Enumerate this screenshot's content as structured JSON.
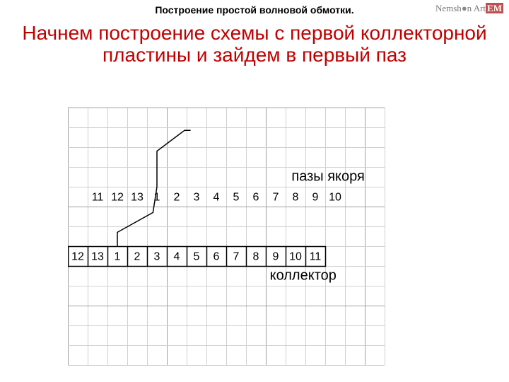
{
  "header": "Построение простой волновой обмотки.",
  "watermark": {
    "part1": "Nemsh",
    "dot": "●",
    "part2": "n Art",
    "suffix": "EM"
  },
  "subtitle": "Начнем построение схемы с первой коллекторной пластины и зайдем в первый паз",
  "diagram": {
    "cell_size": 28,
    "cols": 16,
    "rows": 13,
    "grid_light_color": "#d0d0d0",
    "grid_bold_color": "#a0a0a0",
    "slot_label": "пазы якоря",
    "slot_label_row": 3,
    "slot_label_col_start": 11.3,
    "slots_row": 4,
    "slots": [
      "11",
      "12",
      "13",
      "1",
      "2",
      "3",
      "4",
      "5",
      "6",
      "7",
      "8",
      "9",
      "10"
    ],
    "slots_col_start": 1,
    "collector_label": "коллектор",
    "collector_label_row": 8,
    "collector_label_col_start": 10.2,
    "collector_row": 7,
    "collector": [
      "12",
      "13",
      "1",
      "2",
      "3",
      "4",
      "5",
      "6",
      "7",
      "8",
      "9",
      "10",
      "11"
    ],
    "collector_col_start": 0,
    "winding_path": {
      "points": [
        {
          "col": 2.5,
          "row": 7
        },
        {
          "col": 2.5,
          "row": 6.3
        },
        {
          "col": 4.3,
          "row": 5.3
        },
        {
          "col": 4.5,
          "row": 4
        },
        {
          "col": 4.5,
          "row": 2.2
        },
        {
          "col": 5.9,
          "row": 1.15
        },
        {
          "col": 6.2,
          "row": 1.15
        }
      ],
      "stroke": "#000000",
      "stroke_width": 1.5
    },
    "collector_box": {
      "col_start": 0,
      "col_end": 13,
      "row": 7,
      "stroke": "#000000",
      "stroke_width": 1.5
    }
  }
}
